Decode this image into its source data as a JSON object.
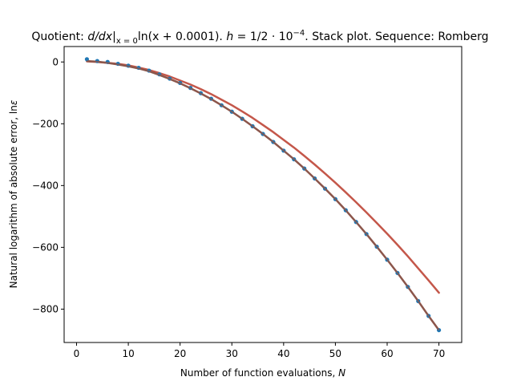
{
  "chart_data": {
    "type": "line",
    "title_parts": {
      "lead": "Quotient: ",
      "derivative": "d/dx",
      "eval_subscript": "x = 0",
      "expression": "ln(x + 0.0001). ",
      "step_label": "h",
      "step_value": " = 1/2 · 10",
      "step_exponent": "−4",
      "tail": ". Stack plot. Sequence: Romberg"
    },
    "xlabel_parts": {
      "text": "Number of function evaluations, ",
      "var": "N"
    },
    "ylabel_parts": {
      "text": "Natural logarithm of absolute error, ln",
      "var": "ε"
    },
    "xlim": [
      -2.4,
      74.4
    ],
    "ylim": [
      -908,
      50
    ],
    "xticks": [
      0,
      10,
      20,
      30,
      40,
      50,
      60,
      70
    ],
    "xtick_labels": [
      "0",
      "10",
      "20",
      "30",
      "40",
      "50",
      "60",
      "70"
    ],
    "yticks": [
      0,
      -200,
      -400,
      -600,
      -800
    ],
    "ytick_labels": [
      "0",
      "−200",
      "−400",
      "−600",
      "−800"
    ],
    "grid": false,
    "series": [
      {
        "kind": "line",
        "color": "#c4574a",
        "x": [
          2,
          4,
          6,
          8,
          10,
          12,
          14,
          16,
          18,
          20,
          22,
          24,
          26,
          28,
          30,
          32,
          34,
          36,
          38,
          40,
          42,
          44,
          46,
          48,
          50,
          52,
          54,
          56,
          58,
          60,
          62,
          64,
          66,
          68,
          70
        ],
        "y": [
          2,
          0,
          -3,
          -6,
          -11,
          -18,
          -26,
          -36,
          -47,
          -60,
          -73,
          -88,
          -104,
          -122,
          -140,
          -160,
          -181,
          -204,
          -227,
          -252,
          -277,
          -304,
          -332,
          -361,
          -391,
          -422,
          -454,
          -487,
          -521,
          -556,
          -592,
          -629,
          -668,
          -707,
          -747
        ]
      },
      {
        "kind": "scatter",
        "color": "#1f77b4",
        "x": [
          2,
          4,
          6,
          8,
          10,
          12,
          14,
          16,
          18,
          20,
          22,
          24,
          26,
          28,
          30,
          32,
          34,
          36,
          38,
          40,
          42,
          44,
          46,
          48,
          50,
          52,
          54,
          56,
          58,
          60,
          62,
          64,
          66,
          68,
          70
        ],
        "y": [
          9,
          3,
          0,
          -6,
          -12,
          -19,
          -28,
          -40,
          -54,
          -68,
          -84,
          -101,
          -119,
          -140,
          -161,
          -184,
          -208,
          -233,
          -259,
          -287,
          -315,
          -345,
          -377,
          -410,
          -444,
          -480,
          -518,
          -557,
          -598,
          -640,
          -683,
          -728,
          -774,
          -822,
          -868
        ]
      },
      {
        "kind": "line",
        "color": "#8c564b",
        "x": [
          2,
          4,
          6,
          8,
          10,
          12,
          14,
          16,
          18,
          20,
          22,
          24,
          26,
          28,
          30,
          32,
          34,
          36,
          38,
          40,
          42,
          44,
          46,
          48,
          50,
          52,
          54,
          56,
          58,
          60,
          62,
          64,
          66,
          68,
          70
        ],
        "y": [
          3,
          1,
          -3,
          -8,
          -14,
          -21,
          -30,
          -42,
          -55,
          -69,
          -85,
          -102,
          -120,
          -140,
          -161,
          -184,
          -208,
          -233,
          -259,
          -287,
          -315,
          -345,
          -377,
          -410,
          -444,
          -480,
          -518,
          -557,
          -598,
          -640,
          -683,
          -728,
          -774,
          -822,
          -868
        ]
      }
    ]
  }
}
